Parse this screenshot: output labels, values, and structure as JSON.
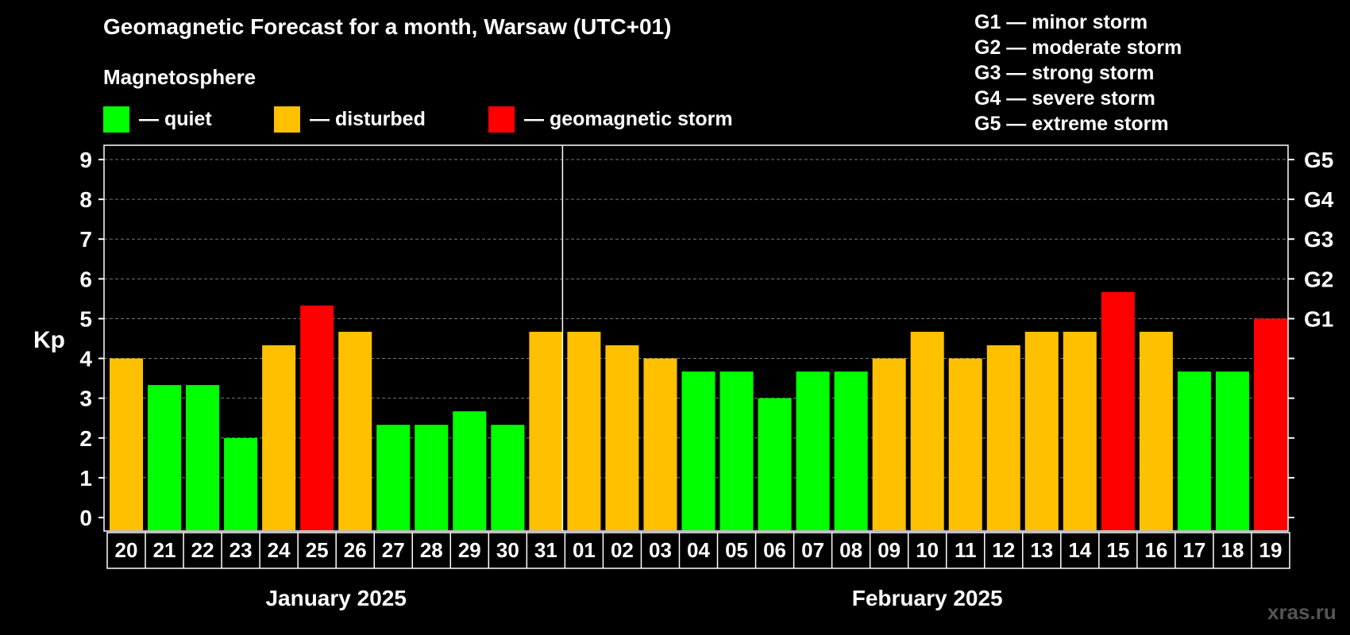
{
  "title": "Geomagnetic Forecast for a month, Warsaw (UTC+01)",
  "subtitle": "Magnetosphere",
  "legend": [
    {
      "label": "— quiet",
      "color": "#00ff00"
    },
    {
      "label": "— disturbed",
      "color": "#ffc000"
    },
    {
      "label": "— geomagnetic storm",
      "color": "#ff0000"
    }
  ],
  "g_legend": [
    "G1 — minor storm",
    "G2 — moderate storm",
    "G3 — strong storm",
    "G4 — severe storm",
    "G5 — extreme storm"
  ],
  "watermark": "xras.ru",
  "chart_data": {
    "type": "bar",
    "ylabel": "Kp",
    "ylim": [
      0,
      9
    ],
    "yticks": [
      0,
      1,
      2,
      3,
      4,
      5,
      6,
      7,
      8,
      9
    ],
    "right_axis_labels": [
      {
        "kp": 5,
        "label": "G1"
      },
      {
        "kp": 6,
        "label": "G2"
      },
      {
        "kp": 7,
        "label": "G3"
      },
      {
        "kp": 8,
        "label": "G4"
      },
      {
        "kp": 9,
        "label": "G5"
      }
    ],
    "grid": true,
    "categories": [
      "20",
      "21",
      "22",
      "23",
      "24",
      "25",
      "26",
      "27",
      "28",
      "29",
      "30",
      "31",
      "01",
      "02",
      "03",
      "04",
      "05",
      "06",
      "07",
      "08",
      "09",
      "10",
      "11",
      "12",
      "13",
      "14",
      "15",
      "16",
      "17",
      "18",
      "19"
    ],
    "values": [
      4.0,
      3.33,
      3.33,
      2.0,
      4.33,
      5.33,
      4.67,
      2.33,
      2.33,
      2.67,
      2.33,
      4.67,
      4.67,
      4.33,
      4.0,
      3.67,
      3.67,
      3.0,
      3.67,
      3.67,
      4.0,
      4.67,
      4.0,
      4.33,
      4.67,
      4.67,
      5.67,
      4.67,
      3.67,
      3.67,
      5.0
    ],
    "status": [
      "disturbed",
      "quiet",
      "quiet",
      "quiet",
      "disturbed",
      "storm",
      "disturbed",
      "quiet",
      "quiet",
      "quiet",
      "quiet",
      "disturbed",
      "disturbed",
      "disturbed",
      "disturbed",
      "quiet",
      "quiet",
      "quiet",
      "quiet",
      "quiet",
      "disturbed",
      "disturbed",
      "disturbed",
      "disturbed",
      "disturbed",
      "disturbed",
      "storm",
      "disturbed",
      "quiet",
      "quiet",
      "storm"
    ],
    "status_colors": {
      "quiet": "#00ff00",
      "disturbed": "#ffc000",
      "storm": "#ff0000"
    },
    "months": [
      {
        "label": "January 2025",
        "count": 12
      },
      {
        "label": "February 2025",
        "count": 19
      }
    ]
  }
}
